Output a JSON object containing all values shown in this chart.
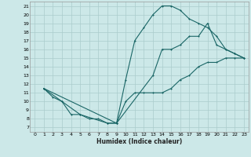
{
  "xlabel": "Humidex (Indice chaleur)",
  "background_color": "#cce8e8",
  "grid_color": "#aacccc",
  "line_color": "#1a6666",
  "xlim": [
    -0.5,
    23.5
  ],
  "ylim": [
    6.5,
    21.5
  ],
  "xticks": [
    0,
    1,
    2,
    3,
    4,
    5,
    6,
    7,
    8,
    9,
    10,
    11,
    12,
    13,
    14,
    15,
    16,
    17,
    18,
    19,
    20,
    21,
    22,
    23
  ],
  "yticks": [
    7,
    8,
    9,
    10,
    11,
    12,
    13,
    14,
    15,
    16,
    17,
    18,
    19,
    20,
    21
  ],
  "line1_bottom": {
    "x": [
      1,
      2,
      3,
      4,
      5,
      6,
      7,
      8,
      9,
      10,
      11,
      12,
      13,
      14,
      15,
      16,
      17,
      18,
      19,
      20,
      21,
      22,
      23
    ],
    "y": [
      11.5,
      10.5,
      10,
      8.5,
      8.5,
      8,
      8,
      7.5,
      7.5,
      10,
      11,
      11,
      11,
      11,
      11.5,
      12.5,
      13,
      14,
      14.5,
      14.5,
      15,
      15,
      15
    ]
  },
  "line2_top": {
    "x": [
      1,
      3,
      5,
      8,
      9,
      10,
      11,
      12,
      13,
      14,
      15,
      16,
      17,
      18,
      19,
      20,
      21,
      22,
      23
    ],
    "y": [
      11.5,
      10,
      8.5,
      7.5,
      7.5,
      12.5,
      17,
      18.5,
      20,
      21,
      21,
      20.5,
      19.5,
      19,
      18.5,
      17.5,
      16,
      15.5,
      15
    ]
  },
  "line3_mid": {
    "x": [
      1,
      9,
      13,
      14,
      15,
      16,
      17,
      18,
      19,
      20,
      21,
      22,
      23
    ],
    "y": [
      11.5,
      7.5,
      13,
      16,
      16,
      16.5,
      17.5,
      17.5,
      19,
      16.5,
      16,
      15.5,
      15
    ]
  }
}
